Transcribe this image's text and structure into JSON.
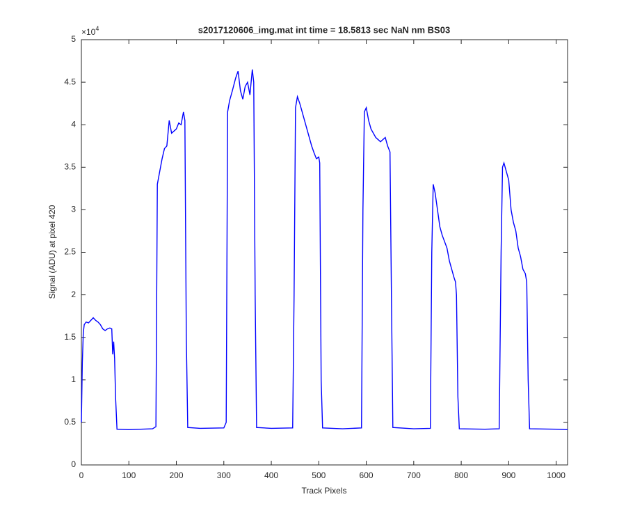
{
  "chart_data": {
    "type": "line",
    "title": "s2017120606_img.mat int time = 18.5813 sec  NaN nm BS03",
    "xlabel": "Track Pixels",
    "ylabel": "Signal (ADU) at pixel 420",
    "y_multiplier": {
      "base": "×10",
      "exponent": "4"
    },
    "xlim": [
      0,
      1024
    ],
    "xticks": [
      0,
      100,
      200,
      300,
      400,
      500,
      600,
      700,
      800,
      900,
      1000
    ],
    "ylim": [
      0,
      50000
    ],
    "yticks": [
      {
        "value": 0,
        "label": "0"
      },
      {
        "value": 5000,
        "label": "0.5"
      },
      {
        "value": 10000,
        "label": "1"
      },
      {
        "value": 15000,
        "label": "1.5"
      },
      {
        "value": 20000,
        "label": "2"
      },
      {
        "value": 25000,
        "label": "2.5"
      },
      {
        "value": 30000,
        "label": "3"
      },
      {
        "value": 35000,
        "label": "3.5"
      },
      {
        "value": 40000,
        "label": "4"
      },
      {
        "value": 45000,
        "label": "4.5"
      },
      {
        "value": 50000,
        "label": "5"
      }
    ],
    "series": [
      {
        "color": "#0000ff",
        "x": [
          0,
          2,
          4,
          6,
          10,
          15,
          20,
          25,
          30,
          35,
          40,
          45,
          50,
          55,
          60,
          64,
          66,
          68,
          70,
          72,
          75,
          100,
          150,
          157,
          160,
          165,
          170,
          175,
          180,
          185,
          190,
          200,
          205,
          210,
          215,
          218,
          221,
          224,
          250,
          300,
          305,
          308,
          312,
          318,
          325,
          330,
          335,
          340,
          345,
          350,
          355,
          360,
          363,
          366,
          369,
          400,
          445,
          448,
          451,
          455,
          460,
          465,
          470,
          475,
          480,
          485,
          490,
          495,
          500,
          502,
          505,
          508,
          550,
          590,
          593,
          596,
          600,
          605,
          610,
          620,
          630,
          640,
          645,
          650,
          653,
          656,
          700,
          735,
          738,
          741,
          745,
          750,
          755,
          760,
          770,
          775,
          780,
          785,
          788,
          790,
          793,
          796,
          850,
          880,
          884,
          887,
          890,
          895,
          900,
          905,
          910,
          915,
          920,
          925,
          930,
          935,
          938,
          941,
          944,
          1000,
          1024
        ],
        "values": [
          5000,
          12000,
          15500,
          16500,
          16800,
          16700,
          17000,
          17300,
          17000,
          16800,
          16500,
          16000,
          15800,
          16000,
          16100,
          16000,
          13000,
          14500,
          12500,
          8000,
          4200,
          4150,
          4250,
          4500,
          33000,
          34500,
          36000,
          37200,
          37500,
          40500,
          39000,
          39500,
          40200,
          40000,
          41500,
          40500,
          15000,
          4400,
          4300,
          4350,
          5000,
          41500,
          42800,
          44000,
          45500,
          46300,
          44000,
          43000,
          44500,
          45000,
          43500,
          46500,
          45000,
          20000,
          4400,
          4300,
          4350,
          20000,
          42000,
          43300,
          42500,
          41500,
          40500,
          39500,
          38500,
          37500,
          36700,
          36000,
          36200,
          35500,
          10000,
          4350,
          4250,
          4350,
          30000,
          41500,
          42000,
          40500,
          39500,
          38500,
          38000,
          38500,
          37500,
          36800,
          20000,
          4400,
          4250,
          4300,
          25000,
          33000,
          32000,
          30000,
          28000,
          27000,
          25500,
          24000,
          23000,
          22000,
          21500,
          20000,
          8000,
          4250,
          4200,
          4250,
          25000,
          35000,
          35500,
          34500,
          33500,
          30000,
          28500,
          27500,
          25500,
          24500,
          23000,
          22500,
          21500,
          10000,
          4250,
          4200,
          4150
        ]
      }
    ]
  }
}
